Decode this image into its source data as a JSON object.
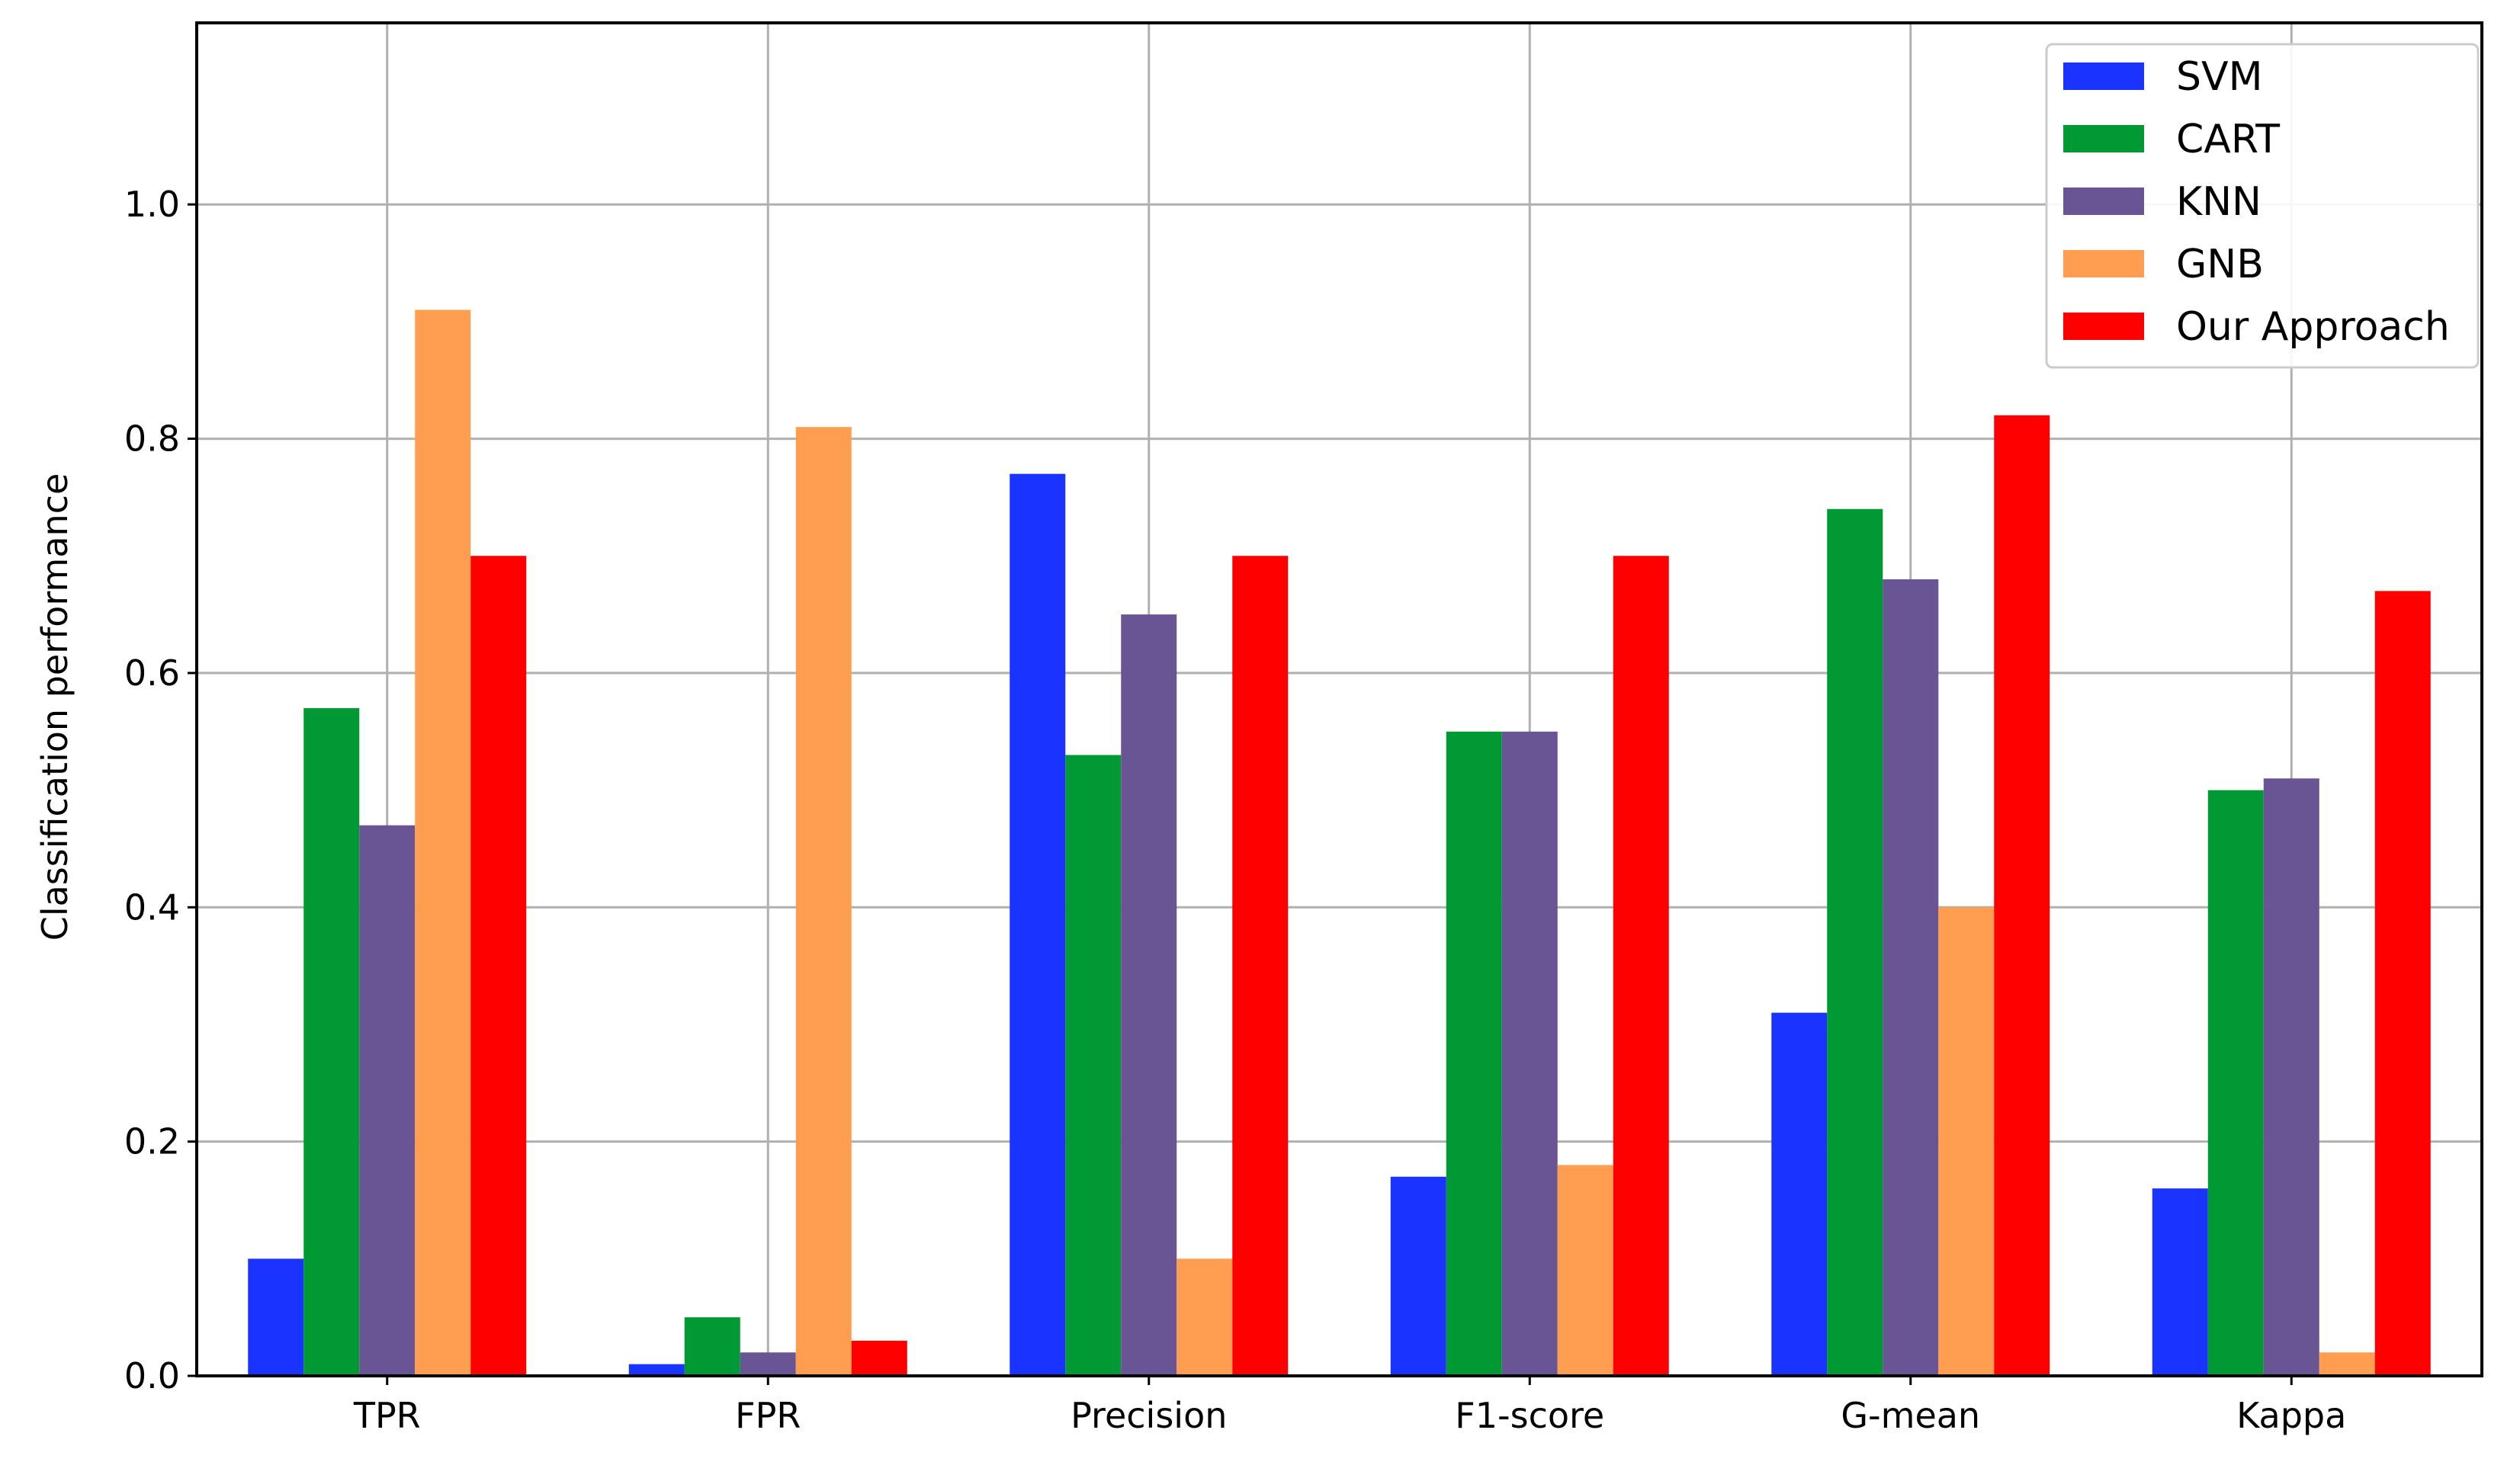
{
  "chart_data": {
    "type": "bar",
    "title": "",
    "xlabel": "",
    "ylabel": "Classification performance",
    "ylim": [
      0,
      1.155
    ],
    "yticks": [
      "0.0",
      "0.2",
      "0.4",
      "0.6",
      "0.8",
      "1.0"
    ],
    "grid": true,
    "legend_position": "top-right",
    "categories": [
      "TPR",
      "FPR",
      "Precision",
      "F1-score",
      "G-mean",
      "Kappa"
    ],
    "series": [
      {
        "name": "SVM",
        "color": "#1a33ff",
        "values": [
          0.1,
          0.01,
          0.77,
          0.17,
          0.31,
          0.16
        ]
      },
      {
        "name": "CART",
        "color": "#009933",
        "values": [
          0.57,
          0.05,
          0.53,
          0.55,
          0.74,
          0.5
        ]
      },
      {
        "name": "KNN",
        "color": "#6a5594",
        "values": [
          0.47,
          0.02,
          0.65,
          0.55,
          0.68,
          0.51
        ]
      },
      {
        "name": "GNB",
        "color": "#ff9d50",
        "values": [
          0.91,
          0.81,
          0.1,
          0.18,
          0.4,
          0.02
        ]
      },
      {
        "name": "Our Approach",
        "color": "#ff0000",
        "values": [
          0.7,
          0.03,
          0.7,
          0.7,
          0.82,
          0.67
        ]
      }
    ]
  }
}
